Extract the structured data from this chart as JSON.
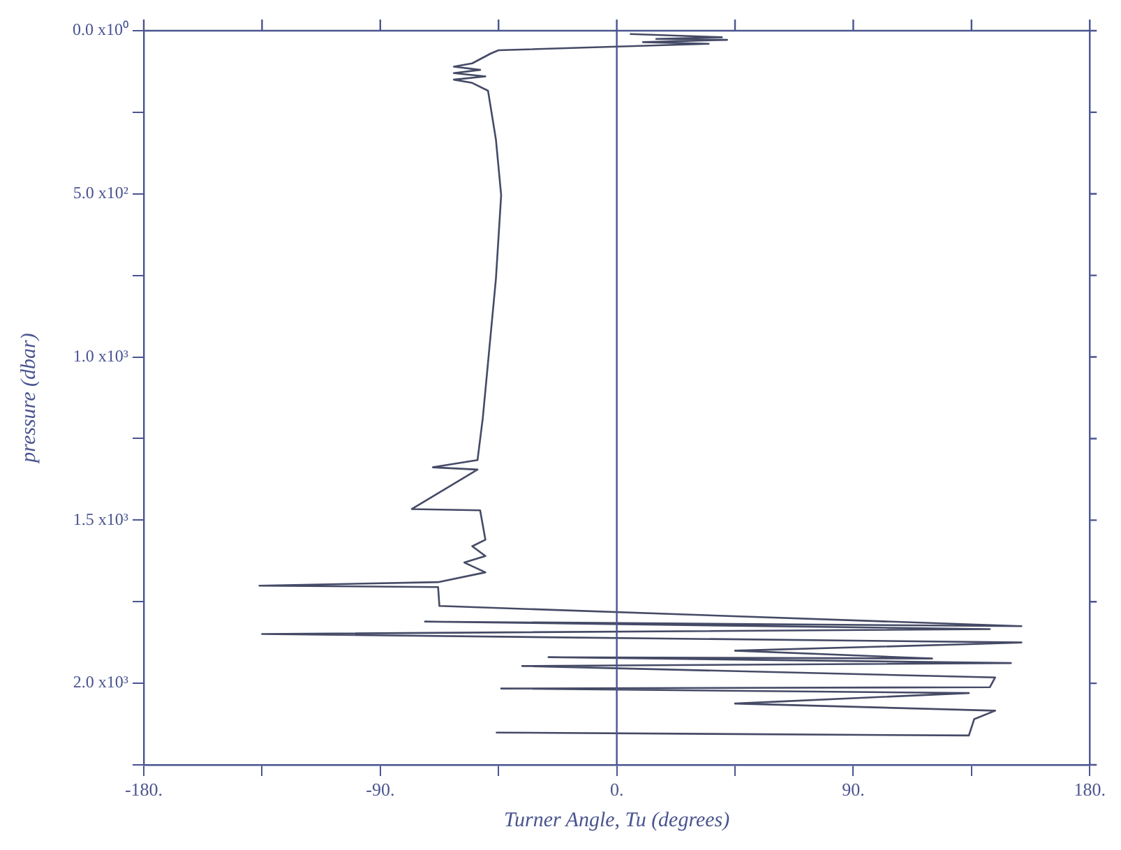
{
  "chart_data": {
    "type": "line",
    "xlabel": "Turner Angle, Tu (degrees)",
    "ylabel": "pressure (dbar)",
    "xlim": [
      -180,
      180
    ],
    "xticks": [
      {
        "value": -180,
        "label": "-180."
      },
      {
        "value": -135,
        "label": null
      },
      {
        "value": -90,
        "label": "-90."
      },
      {
        "value": -45,
        "label": null
      },
      {
        "value": 0,
        "label": "0."
      },
      {
        "value": 45,
        "label": null
      },
      {
        "value": 90,
        "label": "90."
      },
      {
        "value": 135,
        "label": null
      },
      {
        "value": 180,
        "label": "180."
      }
    ],
    "ylim": [
      2250,
      0
    ],
    "yticks": [
      {
        "value": 0,
        "label": "0.0 x10⁰"
      },
      {
        "value": 250,
        "label": null
      },
      {
        "value": 500,
        "label": "5.0 x10²"
      },
      {
        "value": 750,
        "label": null
      },
      {
        "value": 1000,
        "label": "1.0 x10³"
      },
      {
        "value": 1250,
        "label": null
      },
      {
        "value": 1500,
        "label": "1.5 x10³"
      },
      {
        "value": 1750,
        "label": null
      },
      {
        "value": 2000,
        "label": "2.0 x10³"
      },
      {
        "value": 2250,
        "label": null
      }
    ],
    "grid": false,
    "legend": false,
    "marker": "none",
    "line_style": "solid",
    "ref_lines": [
      {
        "axis": "x",
        "value": 0,
        "color": "#4a5490"
      }
    ],
    "series": [
      {
        "color": "#454a66",
        "x": [
          5,
          40,
          15,
          42,
          10,
          35,
          -45,
          -48,
          -55,
          -62,
          -52,
          -62,
          -50,
          -62,
          -55,
          -49,
          -46,
          -44,
          -46,
          -49,
          -51,
          -53,
          -70,
          -53,
          -78,
          -52,
          -50,
          -55,
          -50,
          -58,
          -50,
          -68,
          -136,
          -68,
          -67.5,
          154,
          -73,
          142,
          -135,
          154,
          139,
          45,
          120,
          -26,
          150,
          -36,
          144,
          142,
          -44,
          134,
          45,
          144,
          136,
          134,
          -46
        ],
        "values": [
          10,
          20,
          25,
          28,
          35,
          40,
          60,
          70,
          100,
          110,
          120,
          130,
          140,
          150,
          160,
          184,
          333,
          504,
          761,
          1017,
          1188,
          1316,
          1338,
          1345,
          1466,
          1470,
          1560,
          1580,
          1610,
          1630,
          1660,
          1690,
          1701,
          1705,
          1763,
          1825,
          1811,
          1834,
          1849,
          1875,
          1879,
          1900,
          1924,
          1920,
          1938,
          1947,
          1982,
          2012,
          2016,
          2030,
          2062,
          2084,
          2110,
          2160,
          2151
        ]
      }
    ]
  }
}
